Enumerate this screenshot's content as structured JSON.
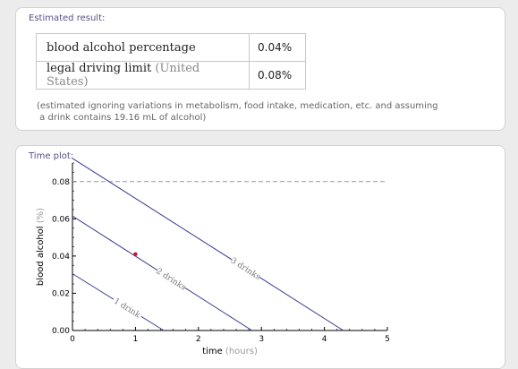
{
  "result_pod": {
    "title": "Estimated result:",
    "rows": [
      {
        "label": "blood alcohol percentage",
        "paren": "",
        "value": "0.04%"
      },
      {
        "label": "legal driving limit",
        "paren": "(United States)",
        "value": "0.08%"
      }
    ],
    "note_line1": "(estimated ignoring variations in metabolism, food intake, medication, etc. and assuming",
    "note_line2": " a drink contains 19.16 mL of alcohol)"
  },
  "plot_pod": {
    "title": "Time plot:"
  },
  "chart_data": {
    "type": "line",
    "xlabel": "time",
    "xlabel_unit": "(hours)",
    "ylabel": "blood alcohol",
    "ylabel_unit": "(%)",
    "xlim": [
      0,
      5
    ],
    "ylim": [
      0,
      0.09
    ],
    "x_ticks": [
      "0",
      "1",
      "2",
      "3",
      "4",
      "5"
    ],
    "y_ticks": [
      "0.00",
      "0.02",
      "0.04",
      "0.06",
      "0.08"
    ],
    "grid": false,
    "series": [
      {
        "name": "1 drink",
        "points": [
          [
            0,
            0.0305
          ],
          [
            1.45,
            0
          ]
        ],
        "color": "#3b3b91"
      },
      {
        "name": "2 drinks",
        "points": [
          [
            0,
            0.0615
          ],
          [
            2.85,
            0
          ]
        ],
        "color": "#3b3b91"
      },
      {
        "name": "3 drinks",
        "points": [
          [
            0,
            0.0925
          ],
          [
            4.3,
            0
          ]
        ],
        "color": "#3b3b91"
      }
    ],
    "threshold": {
      "y": 0.08,
      "style": "dashed",
      "color": "#999999"
    },
    "marker": {
      "x": 1,
      "y": 0.041,
      "color": "#c8102e"
    }
  }
}
